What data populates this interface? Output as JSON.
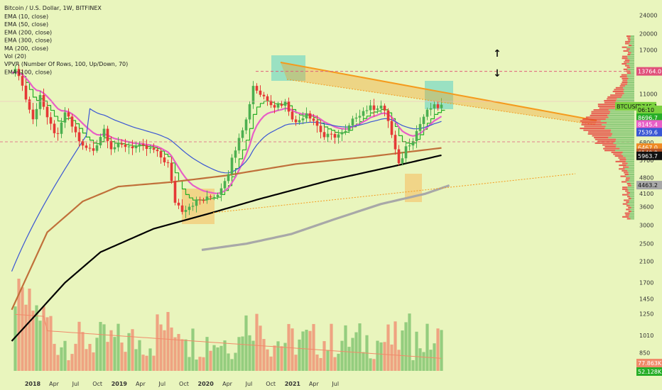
{
  "header": {
    "title": "Bitcoin / U.S. Dollar, 1W, BITFINEX"
  },
  "indicators": [
    "EMA (10, close)",
    "EMA (50, close)",
    "EMA (200, close)",
    "EMA (300, close)",
    "MA (200, close)",
    "Vol (20)",
    "VPVR (Number Of Rows, 100, Up/Down, 70)",
    "EMA (100, close)"
  ],
  "colors": {
    "background": "#e9f5bd",
    "up": "#4caf50",
    "down": "#e53935",
    "up_vol": "#8bc977",
    "down_vol": "#ef9a7a",
    "ema10": "#27ae27",
    "ema50": "#3a56d4",
    "ema100": "#e85fc6",
    "ema200": "#c0703a",
    "ema300": "#000000",
    "ma200": "#a8a8a8",
    "trendline": "#f59a1c",
    "resistance_line": "#e0607a",
    "support_line": "#e0507a",
    "teal_box": "#7fd9c4",
    "orange_box": "#f3c977"
  },
  "chart_data": {
    "type": "candlestick",
    "title": "Bitcoin / U.S. Dollar, 1W, BITFINEX",
    "symbol": "BTCUSD",
    "y_scale": "log",
    "ylim": [
      800,
      26000
    ],
    "y_ticks": [
      24000,
      20000,
      17000,
      14000,
      11000,
      9500,
      8000,
      6800,
      5700,
      4800,
      4100,
      3600,
      3000,
      2500,
      2100,
      1700,
      1450,
      1250,
      1010,
      850
    ],
    "x_ticks": [
      {
        "label": "2018",
        "date": "2018-01-01",
        "bold": true
      },
      {
        "label": "Apr",
        "date": "2018-04-01",
        "bold": false
      },
      {
        "label": "Jul",
        "date": "2018-07-01",
        "bold": false
      },
      {
        "label": "Oct",
        "date": "2018-10-01",
        "bold": false
      },
      {
        "label": "2019",
        "date": "2019-01-01",
        "bold": true
      },
      {
        "label": "Apr",
        "date": "2019-04-01",
        "bold": false
      },
      {
        "label": "Jul",
        "date": "2019-07-01",
        "bold": false
      },
      {
        "label": "Oct",
        "date": "2019-10-01",
        "bold": false
      },
      {
        "label": "2020",
        "date": "2020-01-01",
        "bold": true
      },
      {
        "label": "Apr",
        "date": "2020-04-01",
        "bold": false
      },
      {
        "label": "Jul",
        "date": "2020-07-01",
        "bold": false
      },
      {
        "label": "Oct",
        "date": "2020-10-01",
        "bold": false
      },
      {
        "label": "2021",
        "date": "2021-01-01",
        "bold": true
      },
      {
        "label": "Apr",
        "date": "2021-04-01",
        "bold": false
      },
      {
        "label": "Jul",
        "date": "2021-07-01",
        "bold": false
      }
    ],
    "price_markers": [
      {
        "value": 13764.0,
        "label": "13764.0",
        "color": "#e0507a"
      },
      {
        "value": 9745.1,
        "label": "9745.1",
        "color": "#7bd13f",
        "prefix": "BTCUSD"
      },
      {
        "value": 9400,
        "label": "06:10",
        "color": "#7bd13f"
      },
      {
        "value": 8696.7,
        "label": "8696.7",
        "color": "#27ae27"
      },
      {
        "value": 8145.4,
        "label": "8145.4",
        "color": "#e85fc6"
      },
      {
        "value": 7539.6,
        "label": "7539.6",
        "color": "#3a56d4"
      },
      {
        "value": 6467.0,
        "label": "6467.0",
        "color": "#f08a24"
      },
      {
        "value": 6140.9,
        "label": "6140.9",
        "color": "#b5572a"
      },
      {
        "value": 5963.7,
        "label": "5963.7",
        "color": "#111111"
      },
      {
        "value": 4463.2,
        "label": "4463.2",
        "color": "#a8a8a8"
      },
      {
        "value": 850,
        "label": "77.863K",
        "color": "#f08a6a"
      },
      {
        "value": 800,
        "label": "52.128K",
        "color": "#27ae27"
      }
    ],
    "annotations": [
      {
        "type": "arrow-up",
        "glyph": "↑"
      },
      {
        "type": "arrow-down",
        "glyph": "↓"
      }
    ]
  }
}
